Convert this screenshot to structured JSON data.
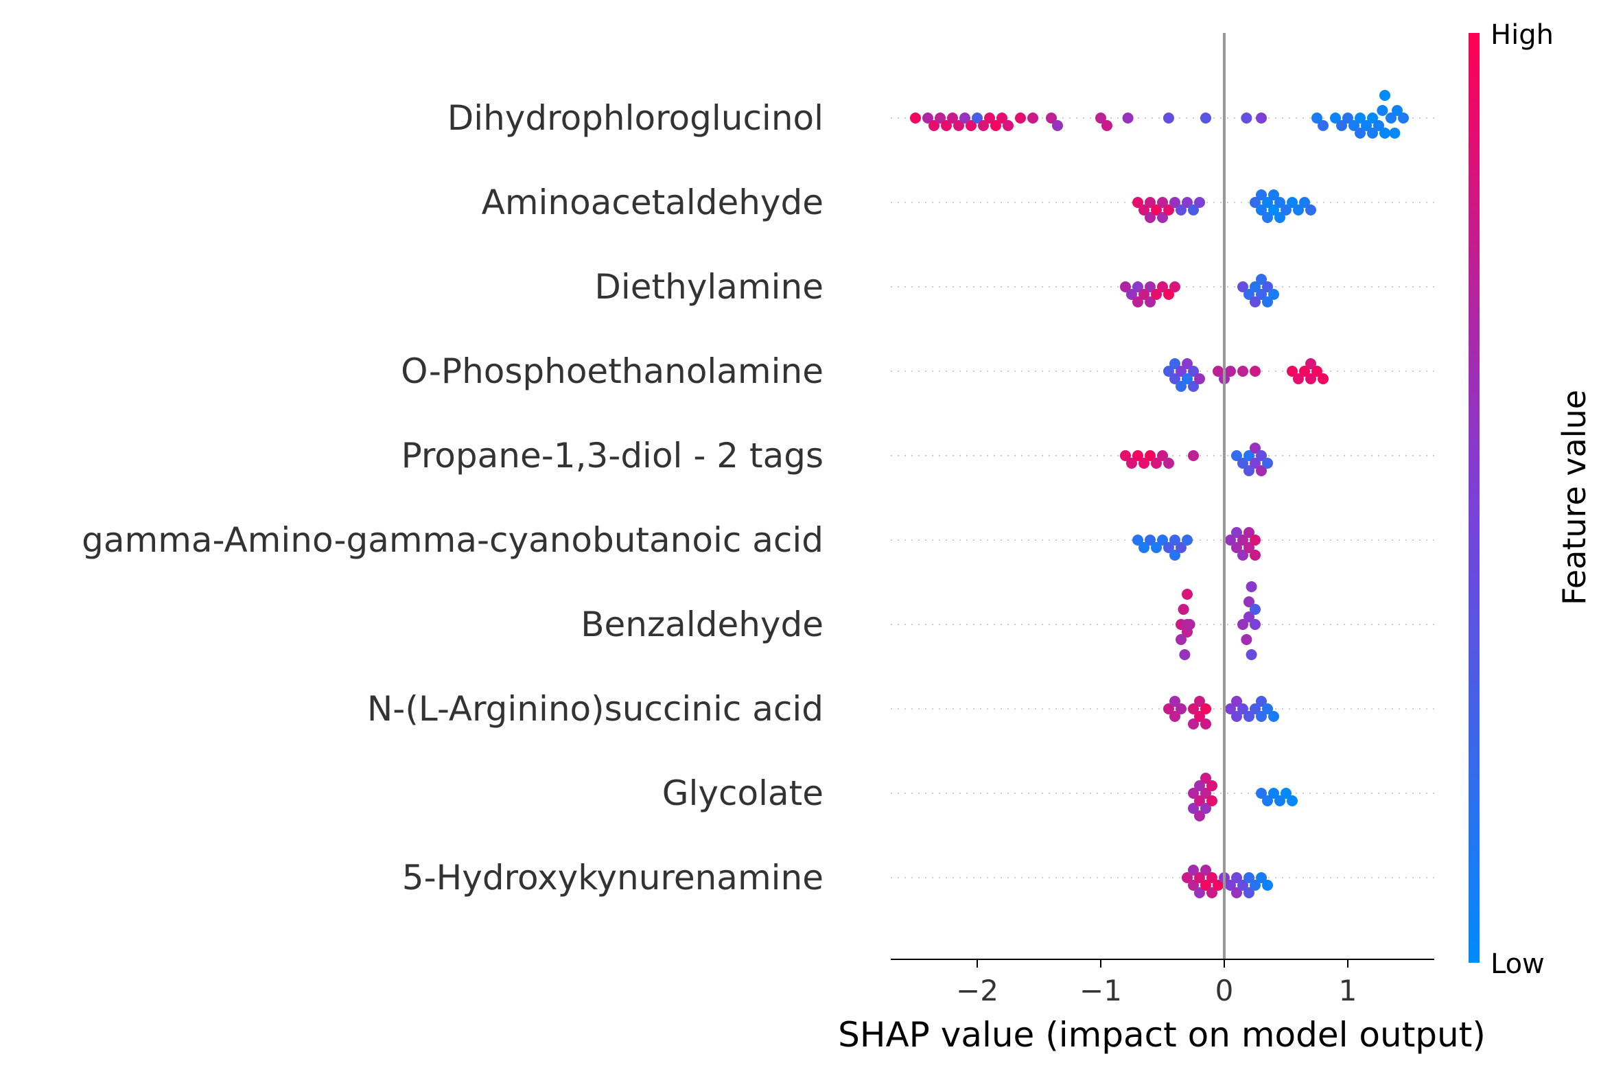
{
  "chart_data": {
    "type": "scatter",
    "subtype": "shap-beeswarm",
    "xlabel": "SHAP value (impact on model output)",
    "xlim": [
      -2.7,
      1.7
    ],
    "xticks": [
      {
        "value": -2,
        "label": "−2"
      },
      {
        "value": -1,
        "label": "−1"
      },
      {
        "value": 0,
        "label": "0"
      },
      {
        "value": 1,
        "label": "1"
      }
    ],
    "zero_line": true,
    "grid": false,
    "colorbar": {
      "label": "Feature value",
      "high_label": "High",
      "low_label": "Low",
      "low_color": "#008bfb",
      "mid_color": "#7c3fd8",
      "high_color": "#ff0052"
    },
    "features": [
      {
        "name": "Dihydrophloroglucinol",
        "points": [
          [
            -2.5,
            0.95
          ],
          [
            -2.4,
            0.7
          ],
          [
            -2.35,
            0.9
          ],
          [
            -2.3,
            0.75
          ],
          [
            -2.25,
            0.9
          ],
          [
            -2.2,
            0.8
          ],
          [
            -2.15,
            0.85
          ],
          [
            -2.1,
            0.6
          ],
          [
            -2.05,
            0.9
          ],
          [
            -2.0,
            0.3
          ],
          [
            -1.95,
            0.85
          ],
          [
            -1.9,
            0.9
          ],
          [
            -1.85,
            0.95
          ],
          [
            -1.8,
            0.9
          ],
          [
            -1.75,
            0.85
          ],
          [
            -1.65,
            0.9
          ],
          [
            -1.55,
            0.8
          ],
          [
            -1.4,
            0.75
          ],
          [
            -1.35,
            0.6
          ],
          [
            -1.0,
            0.75
          ],
          [
            -0.95,
            0.8
          ],
          [
            -0.78,
            0.6
          ],
          [
            -0.45,
            0.4
          ],
          [
            -0.15,
            0.35
          ],
          [
            0.18,
            0.4
          ],
          [
            0.3,
            0.5
          ],
          [
            0.75,
            0.1
          ],
          [
            0.8,
            0.2
          ],
          [
            0.9,
            0.05
          ],
          [
            1.0,
            0.15
          ],
          [
            1.05,
            0.1
          ],
          [
            1.1,
            0.02
          ],
          [
            1.15,
            0.05
          ],
          [
            1.2,
            0.0
          ],
          [
            1.25,
            0.08
          ],
          [
            1.3,
            0.03
          ],
          [
            1.35,
            0.1
          ],
          [
            1.4,
            0.05
          ],
          [
            1.45,
            0.12
          ],
          [
            0.95,
            0.18
          ],
          [
            1.1,
            0.15
          ],
          [
            1.2,
            0.1
          ],
          [
            1.3,
            0.0
          ],
          [
            1.38,
            0.02
          ],
          [
            1.28,
            0.05
          ]
        ]
      },
      {
        "name": "Aminoacetaldehyde",
        "points": [
          [
            -0.7,
            0.9
          ],
          [
            -0.65,
            0.85
          ],
          [
            -0.6,
            0.8
          ],
          [
            -0.55,
            0.95
          ],
          [
            -0.5,
            0.75
          ],
          [
            -0.45,
            0.9
          ],
          [
            -0.4,
            0.6
          ],
          [
            -0.35,
            0.4
          ],
          [
            -0.3,
            0.55
          ],
          [
            -0.25,
            0.3
          ],
          [
            -0.2,
            0.5
          ],
          [
            -0.6,
            0.7
          ],
          [
            -0.5,
            0.65
          ],
          [
            0.25,
            0.2
          ],
          [
            0.3,
            0.1
          ],
          [
            0.35,
            0.05
          ],
          [
            0.4,
            0.0
          ],
          [
            0.45,
            0.1
          ],
          [
            0.5,
            0.15
          ],
          [
            0.55,
            0.05
          ],
          [
            0.65,
            0.1
          ],
          [
            0.7,
            0.2
          ],
          [
            0.3,
            0.15
          ],
          [
            0.4,
            0.1
          ],
          [
            0.45,
            0.05
          ],
          [
            0.35,
            0.12
          ],
          [
            0.6,
            0.08
          ]
        ]
      },
      {
        "name": "Diethylamine",
        "points": [
          [
            -0.8,
            0.7
          ],
          [
            -0.75,
            0.6
          ],
          [
            -0.7,
            0.55
          ],
          [
            -0.65,
            0.8
          ],
          [
            -0.6,
            0.65
          ],
          [
            -0.55,
            0.9
          ],
          [
            -0.5,
            0.85
          ],
          [
            -0.45,
            0.95
          ],
          [
            -0.4,
            0.85
          ],
          [
            -0.7,
            0.75
          ],
          [
            -0.6,
            0.7
          ],
          [
            0.15,
            0.4
          ],
          [
            0.2,
            0.2
          ],
          [
            0.25,
            0.15
          ],
          [
            0.3,
            0.25
          ],
          [
            0.35,
            0.3
          ],
          [
            0.4,
            0.1
          ],
          [
            0.25,
            0.4
          ],
          [
            0.3,
            0.2
          ],
          [
            0.35,
            0.15
          ]
        ]
      },
      {
        "name": "O-Phosphoethanolamine",
        "points": [
          [
            -0.45,
            0.3
          ],
          [
            -0.4,
            0.35
          ],
          [
            -0.35,
            0.5
          ],
          [
            -0.3,
            0.15
          ],
          [
            -0.25,
            0.4
          ],
          [
            -0.2,
            0.6
          ],
          [
            -0.35,
            0.2
          ],
          [
            -0.3,
            0.55
          ],
          [
            -0.05,
            0.75
          ],
          [
            0.0,
            0.65
          ],
          [
            0.05,
            0.7
          ],
          [
            0.15,
            0.75
          ],
          [
            0.25,
            0.8
          ],
          [
            0.55,
            0.95
          ],
          [
            0.6,
            0.9
          ],
          [
            0.65,
            0.95
          ],
          [
            0.7,
            0.9
          ],
          [
            0.75,
            0.95
          ],
          [
            0.8,
            0.95
          ],
          [
            0.7,
            0.85
          ],
          [
            -0.4,
            0.25
          ],
          [
            -0.25,
            0.35
          ]
        ]
      },
      {
        "name": "Propane-1,3-diol - 2 tags",
        "points": [
          [
            -0.8,
            0.9
          ],
          [
            -0.75,
            0.85
          ],
          [
            -0.7,
            0.95
          ],
          [
            -0.65,
            0.9
          ],
          [
            -0.6,
            0.95
          ],
          [
            -0.55,
            0.85
          ],
          [
            -0.5,
            0.8
          ],
          [
            -0.45,
            0.75
          ],
          [
            -0.25,
            0.75
          ],
          [
            0.1,
            0.2
          ],
          [
            0.15,
            0.3
          ],
          [
            0.2,
            0.15
          ],
          [
            0.25,
            0.5
          ],
          [
            0.3,
            0.4
          ],
          [
            0.35,
            0.25
          ],
          [
            0.25,
            0.6
          ],
          [
            0.3,
            0.65
          ],
          [
            0.2,
            0.35
          ]
        ]
      },
      {
        "name": "gamma-Amino-gamma-cyanobutanoic acid",
        "points": [
          [
            -0.7,
            0.15
          ],
          [
            -0.65,
            0.1
          ],
          [
            -0.6,
            0.2
          ],
          [
            -0.55,
            0.1
          ],
          [
            -0.5,
            0.15
          ],
          [
            -0.45,
            0.3
          ],
          [
            -0.4,
            0.25
          ],
          [
            -0.35,
            0.35
          ],
          [
            -0.3,
            0.2
          ],
          [
            -0.4,
            0.15
          ],
          [
            0.05,
            0.6
          ],
          [
            0.1,
            0.65
          ],
          [
            0.15,
            0.7
          ],
          [
            0.2,
            0.75
          ],
          [
            0.25,
            0.85
          ],
          [
            0.1,
            0.55
          ],
          [
            0.15,
            0.6
          ],
          [
            0.2,
            0.7
          ],
          [
            0.25,
            0.8
          ]
        ]
      },
      {
        "name": "Benzaldehyde",
        "points": [
          [
            -0.35,
            0.8
          ],
          [
            -0.3,
            0.75
          ],
          [
            -0.28,
            0.7
          ],
          [
            -0.35,
            0.65
          ],
          [
            -0.3,
            0.85
          ],
          [
            -0.32,
            0.6
          ],
          [
            -0.3,
            0.7
          ],
          [
            -0.33,
            0.8
          ],
          [
            0.15,
            0.6
          ],
          [
            0.2,
            0.55
          ],
          [
            0.25,
            0.5
          ],
          [
            0.22,
            0.4
          ],
          [
            0.18,
            0.65
          ],
          [
            0.25,
            0.3
          ],
          [
            0.2,
            0.6
          ],
          [
            0.22,
            0.55
          ]
        ]
      },
      {
        "name": "N-(L-Arginino)succinic acid",
        "points": [
          [
            -0.45,
            0.8
          ],
          [
            -0.4,
            0.75
          ],
          [
            -0.35,
            0.7
          ],
          [
            -0.25,
            0.85
          ],
          [
            -0.2,
            0.9
          ],
          [
            -0.15,
            0.95
          ],
          [
            -0.2,
            0.8
          ],
          [
            -0.25,
            0.75
          ],
          [
            -0.4,
            0.65
          ],
          [
            -0.15,
            0.8
          ],
          [
            0.05,
            0.5
          ],
          [
            0.1,
            0.45
          ],
          [
            0.15,
            0.4
          ],
          [
            0.2,
            0.35
          ],
          [
            0.25,
            0.3
          ],
          [
            0.3,
            0.2
          ],
          [
            0.35,
            0.15
          ],
          [
            0.4,
            0.1
          ],
          [
            0.1,
            0.55
          ],
          [
            0.3,
            0.3
          ]
        ]
      },
      {
        "name": "Glycolate",
        "points": [
          [
            -0.25,
            0.7
          ],
          [
            -0.2,
            0.8
          ],
          [
            -0.15,
            0.75
          ],
          [
            -0.1,
            0.9
          ],
          [
            -0.2,
            0.65
          ],
          [
            -0.15,
            0.6
          ],
          [
            -0.1,
            0.85
          ],
          [
            -0.25,
            0.6
          ],
          [
            -0.2,
            0.7
          ],
          [
            -0.15,
            0.8
          ],
          [
            0.3,
            0.15
          ],
          [
            0.35,
            0.1
          ],
          [
            0.4,
            0.05
          ],
          [
            0.45,
            0.08
          ],
          [
            0.5,
            0.0
          ],
          [
            0.55,
            0.02
          ]
        ]
      },
      {
        "name": "5-Hydroxykynurenamine",
        "points": [
          [
            -0.3,
            0.8
          ],
          [
            -0.25,
            0.75
          ],
          [
            -0.2,
            0.85
          ],
          [
            -0.15,
            0.95
          ],
          [
            -0.1,
            0.9
          ],
          [
            -0.05,
            0.95
          ],
          [
            -0.2,
            0.6
          ],
          [
            -0.15,
            0.7
          ],
          [
            -0.25,
            0.65
          ],
          [
            0.0,
            0.55
          ],
          [
            0.05,
            0.5
          ],
          [
            0.1,
            0.45
          ],
          [
            0.15,
            0.4
          ],
          [
            0.2,
            0.2
          ],
          [
            0.25,
            0.15
          ],
          [
            0.3,
            0.1
          ],
          [
            0.35,
            0.05
          ],
          [
            0.2,
            0.35
          ],
          [
            -0.1,
            0.8
          ],
          [
            0.1,
            0.6
          ]
        ]
      }
    ]
  }
}
